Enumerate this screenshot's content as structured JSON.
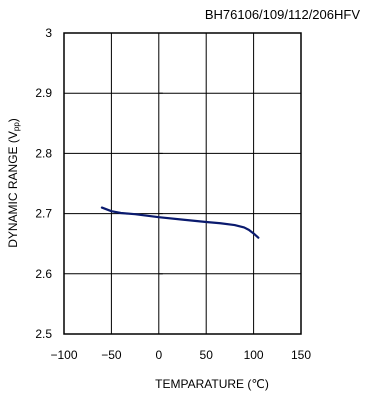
{
  "chart_data": {
    "type": "line",
    "title": "BH76106/109/112/206HFV",
    "xlabel": "TEMPARATURE (℃)",
    "ylabel_main": "DYNAMIC RANGE (V",
    "ylabel_sub": "pp",
    "ylabel_end": ")",
    "xlim": [
      -100,
      150
    ],
    "ylim": [
      2.5,
      3.0
    ],
    "x_ticks": [
      -100,
      -50,
      0,
      50,
      100,
      150
    ],
    "x_tick_labels": [
      "−100",
      "−50",
      "0",
      "50",
      "100",
      "150"
    ],
    "y_ticks": [
      2.5,
      2.6,
      2.7,
      2.8,
      2.9,
      3.0
    ],
    "y_tick_labels": [
      "2.5",
      "2.6",
      "2.7",
      "2.8",
      "2.9",
      "3"
    ],
    "grid": true,
    "series": [
      {
        "color": "#0a1a6e",
        "x": [
          -60,
          -50,
          -40,
          -25,
          0,
          25,
          50,
          65,
          80,
          90,
          95,
          100,
          105
        ],
        "y": [
          2.71,
          2.704,
          2.701,
          2.699,
          2.694,
          2.69,
          2.686,
          2.684,
          2.681,
          2.677,
          2.673,
          2.667,
          2.66
        ]
      }
    ]
  }
}
